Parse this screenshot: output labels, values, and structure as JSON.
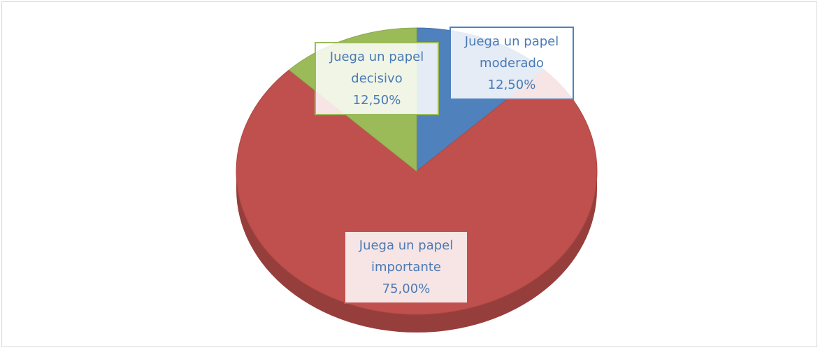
{
  "chart_data": {
    "type": "pie",
    "categories": [
      "Juega un papel moderado",
      "Juega un papel importante",
      "Juega un papel decisivo"
    ],
    "values": [
      12.5,
      75,
      12.5
    ],
    "value_labels": [
      "12,50%",
      "75,00%",
      "12,50%"
    ],
    "colors": [
      "#4f81bd",
      "#c0504d",
      "#9bbb59"
    ]
  }
}
